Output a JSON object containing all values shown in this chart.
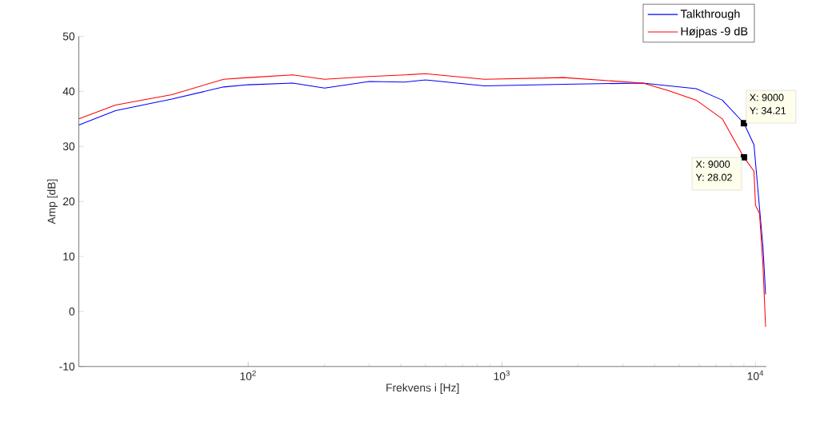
{
  "chart_data": {
    "type": "line",
    "xlabel": "Frekvens i [Hz]",
    "ylabel": "Amp [dB]",
    "log": "x",
    "legend": "top right",
    "line_style": "solid",
    "marker": "none",
    "xlim": [
      21.5,
      11025
    ],
    "ylim": [
      -10,
      50
    ],
    "xticks": [
      {
        "value": 100,
        "label": "10$^{2}$"
      },
      {
        "value": 1000,
        "label": "10$^{3}$"
      },
      {
        "value": 10000,
        "label": "10$^{4}$"
      }
    ],
    "yticks": [
      -10,
      0,
      10,
      20,
      30,
      40,
      50
    ],
    "series": [
      {
        "name": "Talkthrough",
        "color": "#0000ff",
        "x": [
          21.5,
          30,
          50,
          80,
          100,
          150,
          200,
          300,
          416,
          500,
          854,
          1754,
          3600,
          4571,
          5840,
          7400,
          9000,
          9860,
          10370,
          10700,
          10960
        ],
        "values": [
          33.9,
          36.5,
          38.6,
          40.8,
          41.2,
          41.5,
          40.6,
          41.8,
          41.7,
          42.1,
          41.0,
          41.3,
          41.5,
          41.0,
          40.5,
          38.4,
          34.21,
          30.3,
          18.8,
          11.7,
          3.1
        ]
      },
      {
        "name": "Højpas -9 dB",
        "color": "#ff0000",
        "x": [
          21.5,
          30,
          50,
          80,
          100,
          150,
          200,
          300,
          416,
          500,
          854,
          1754,
          3600,
          4571,
          5840,
          7400,
          9000,
          9860,
          10000,
          10370,
          10700,
          10960
        ],
        "values": [
          35.0,
          37.5,
          39.4,
          42.2,
          42.5,
          43.0,
          42.2,
          42.7,
          43.0,
          43.2,
          42.2,
          42.5,
          41.5,
          40.1,
          38.4,
          35.0,
          28.02,
          25.5,
          19.3,
          17.8,
          8.3,
          -2.8
        ]
      },
      {
        "type": "scatter",
        "color": "#000000",
        "marker": "square",
        "x": [
          9000,
          9000
        ],
        "values": [
          34.21,
          28.02
        ]
      }
    ],
    "annotations": [
      "X: 9000",
      "Y: 34.21",
      "X: 9000",
      "Y: 28.02"
    ]
  }
}
